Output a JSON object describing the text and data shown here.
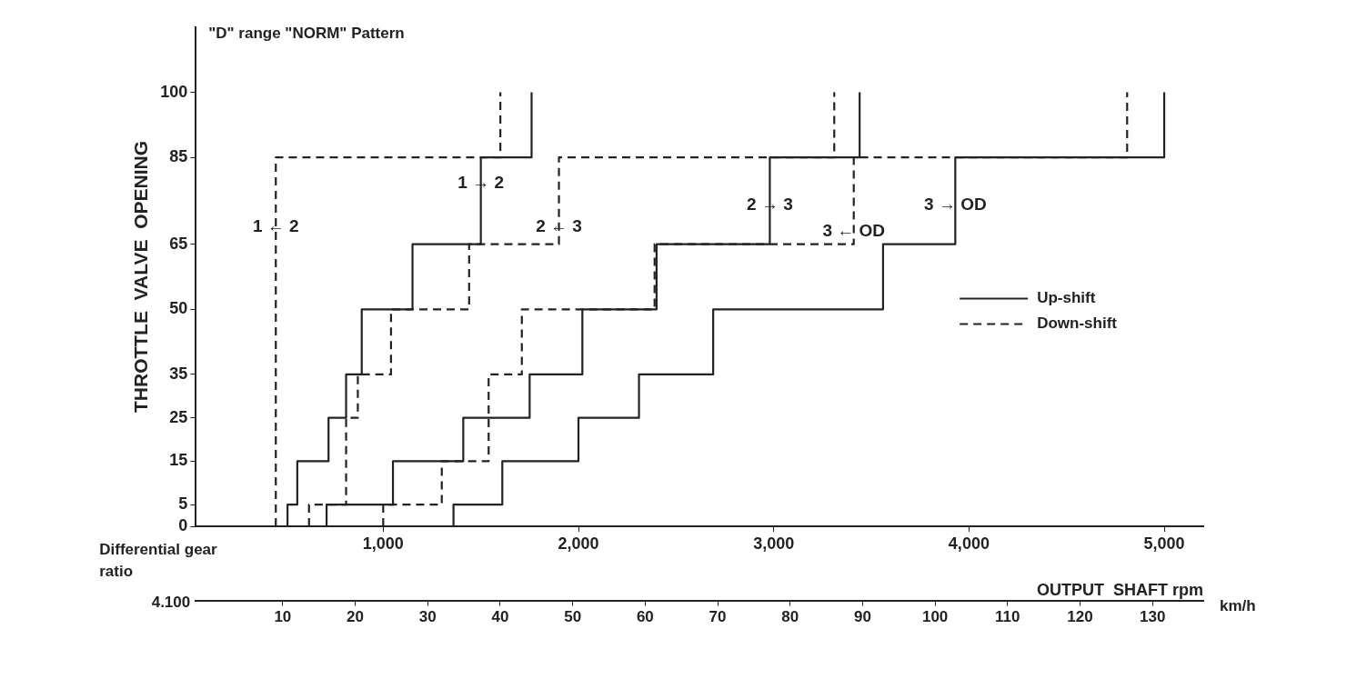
{
  "chart_data": {
    "type": "line",
    "title": "\"D\" range \"NORM\" Pattern",
    "xlabel": "OUTPUT  SHAFT rpm",
    "ylabel": "THROTTLE  VALVE  OPENING",
    "x2label": "km/h",
    "xlim": [
      40,
      5200
    ],
    "xticks": [
      {
        "value": 1000,
        "label": "1,000"
      },
      {
        "value": 2000,
        "label": "2,000"
      },
      {
        "value": 3000,
        "label": "3,000"
      },
      {
        "value": 4000,
        "label": "4,000"
      },
      {
        "value": 5000,
        "label": "5,000"
      }
    ],
    "ylim": [
      0,
      115
    ],
    "yticks": [
      0,
      5,
      15,
      25,
      35,
      50,
      65,
      85,
      100
    ],
    "x2lim": [
      -2,
      137
    ],
    "x2ticks": [
      10,
      20,
      30,
      40,
      50,
      60,
      70,
      80,
      90,
      100,
      110,
      120,
      130
    ],
    "grid": false,
    "legend": "right",
    "marker": "none",
    "series": [
      {
        "name": "Up-shift",
        "color": "#222222",
        "line_style": "solid",
        "x": [
          510,
          510,
          560,
          560,
          720,
          720,
          810,
          810,
          890,
          890,
          1150,
          1150,
          1500,
          1500,
          1760,
          1760
        ],
        "values": [
          0,
          5,
          5,
          15,
          15,
          25,
          25,
          35,
          35,
          50,
          50,
          65,
          65,
          85,
          85,
          100
        ]
      },
      {
        "color": "#222222",
        "line_style": "solid",
        "x": [
          710,
          710,
          1050,
          1050,
          1410,
          1410,
          1750,
          1750,
          2020,
          2020,
          2400,
          2400,
          2980,
          2980,
          3440,
          3440
        ],
        "values": [
          0,
          5,
          5,
          15,
          15,
          25,
          25,
          35,
          35,
          50,
          50,
          65,
          65,
          85,
          85,
          100
        ]
      },
      {
        "color": "#222222",
        "line_style": "solid",
        "x": [
          1360,
          1360,
          1610,
          1610,
          2000,
          2000,
          2310,
          2310,
          2690,
          2690,
          3560,
          3560,
          3930,
          3930,
          5000,
          5000
        ],
        "values": [
          0,
          5,
          5,
          15,
          15,
          25,
          25,
          35,
          35,
          50,
          50,
          65,
          65,
          85,
          85,
          100
        ]
      },
      {
        "name": "Down-shift",
        "color": "#222222",
        "line_style": "dashed",
        "x": [
          450,
          450,
          1600,
          1600
        ],
        "values": [
          0,
          85,
          85,
          100
        ]
      },
      {
        "color": "#222222",
        "line_style": "dashed",
        "x": [
          620,
          620,
          810,
          810,
          870,
          870,
          1040,
          1040,
          1440,
          1440,
          1900,
          1900,
          3310,
          3310
        ],
        "values": [
          0,
          5,
          5,
          25,
          25,
          35,
          35,
          50,
          50,
          65,
          65,
          85,
          85,
          100
        ]
      },
      {
        "color": "#222222",
        "line_style": "dashed",
        "x": [
          1000,
          1000,
          1300,
          1300,
          1540,
          1540,
          1710,
          1710,
          2390,
          2390,
          3410,
          3410,
          4810,
          4810
        ],
        "values": [
          0,
          5,
          5,
          15,
          15,
          35,
          35,
          50,
          50,
          65,
          65,
          85,
          85,
          100
        ]
      }
    ],
    "annotations": [
      {
        "text": "1 ← 2",
        "x": 450,
        "y": 69
      },
      {
        "text": "1 → 2",
        "x": 1500,
        "y": 79
      },
      {
        "text": "2 ← 3",
        "x": 1900,
        "y": 69
      },
      {
        "text": "2 → 3",
        "x": 2980,
        "y": 74
      },
      {
        "text": "3 ← OD",
        "x": 3410,
        "y": 68
      },
      {
        "text": "3 → OD",
        "x": 3930,
        "y": 74
      },
      "Differential gear ratio",
      "4.100"
    ]
  }
}
